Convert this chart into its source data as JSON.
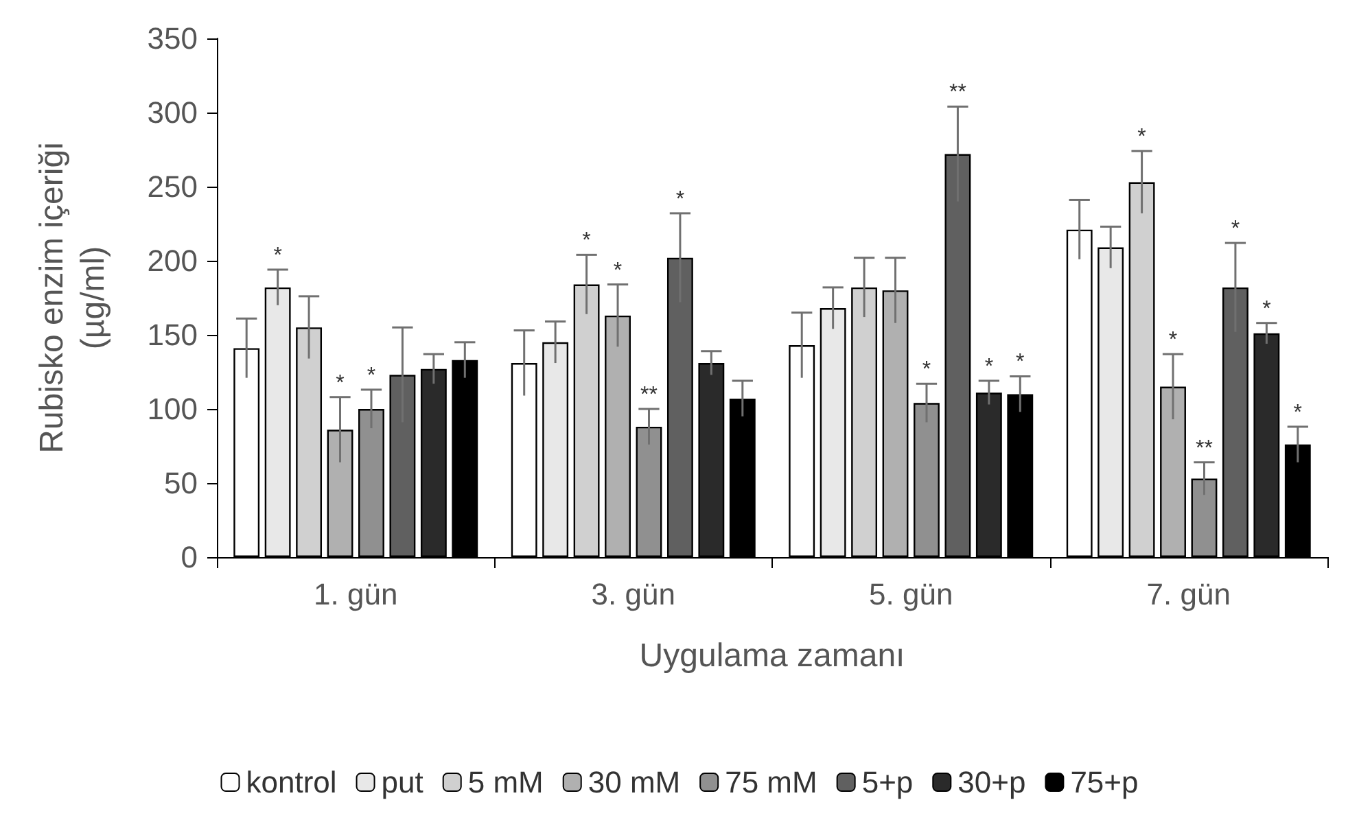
{
  "chart_data": {
    "type": "bar",
    "xlabel": "Uygulama zamanı",
    "ylabel": "Rubisko enzim içeriği\n(µg/ml)",
    "categories": [
      "1. gün",
      "3. gün",
      "5. gün",
      "7. gün"
    ],
    "ylim": [
      0,
      350
    ],
    "yticks": [
      0,
      50,
      100,
      150,
      200,
      250,
      300,
      350
    ],
    "grid": false,
    "legend": "bottom",
    "series": [
      {
        "name": "kontrol",
        "color": "#ffffff",
        "values": [
          141,
          131,
          143,
          221
        ],
        "errors": [
          20,
          22,
          22,
          20
        ],
        "value_labels": [
          null,
          null,
          null,
          null
        ]
      },
      {
        "name": "put",
        "color": "#e8e8e8",
        "values": [
          182,
          145,
          168,
          209
        ],
        "errors": [
          12,
          14,
          14,
          14
        ],
        "value_labels": [
          "*",
          null,
          null,
          null
        ]
      },
      {
        "name": "5 mM",
        "color": "#d0d0d0",
        "values": [
          155,
          184,
          182,
          253
        ],
        "errors": [
          21,
          20,
          20,
          21
        ],
        "value_labels": [
          null,
          "*",
          null,
          "*"
        ]
      },
      {
        "name": "30 mM",
        "color": "#b0b0b0",
        "values": [
          86,
          163,
          180,
          115
        ],
        "errors": [
          22,
          21,
          22,
          22
        ],
        "value_labels": [
          "*",
          "*",
          null,
          "*"
        ]
      },
      {
        "name": "75 mM",
        "color": "#909090",
        "values": [
          100,
          88,
          104,
          53
        ],
        "errors": [
          13,
          12,
          13,
          11
        ],
        "value_labels": [
          "*",
          "**",
          "*",
          "**"
        ]
      },
      {
        "name": "5+p",
        "color": "#606060",
        "values": [
          123,
          202,
          272,
          182
        ],
        "errors": [
          32,
          30,
          32,
          30
        ],
        "value_labels": [
          null,
          "*",
          "**",
          "*"
        ]
      },
      {
        "name": "30+p",
        "color": "#2a2a2a",
        "values": [
          127,
          131,
          111,
          151
        ],
        "errors": [
          10,
          8,
          8,
          7
        ],
        "value_labels": [
          null,
          null,
          "*",
          "*"
        ]
      },
      {
        "name": "75+p",
        "color": "#000000",
        "values": [
          133,
          107,
          110,
          76
        ],
        "errors": [
          12,
          12,
          12,
          12
        ],
        "value_labels": [
          null,
          null,
          "*",
          "*"
        ]
      }
    ]
  }
}
